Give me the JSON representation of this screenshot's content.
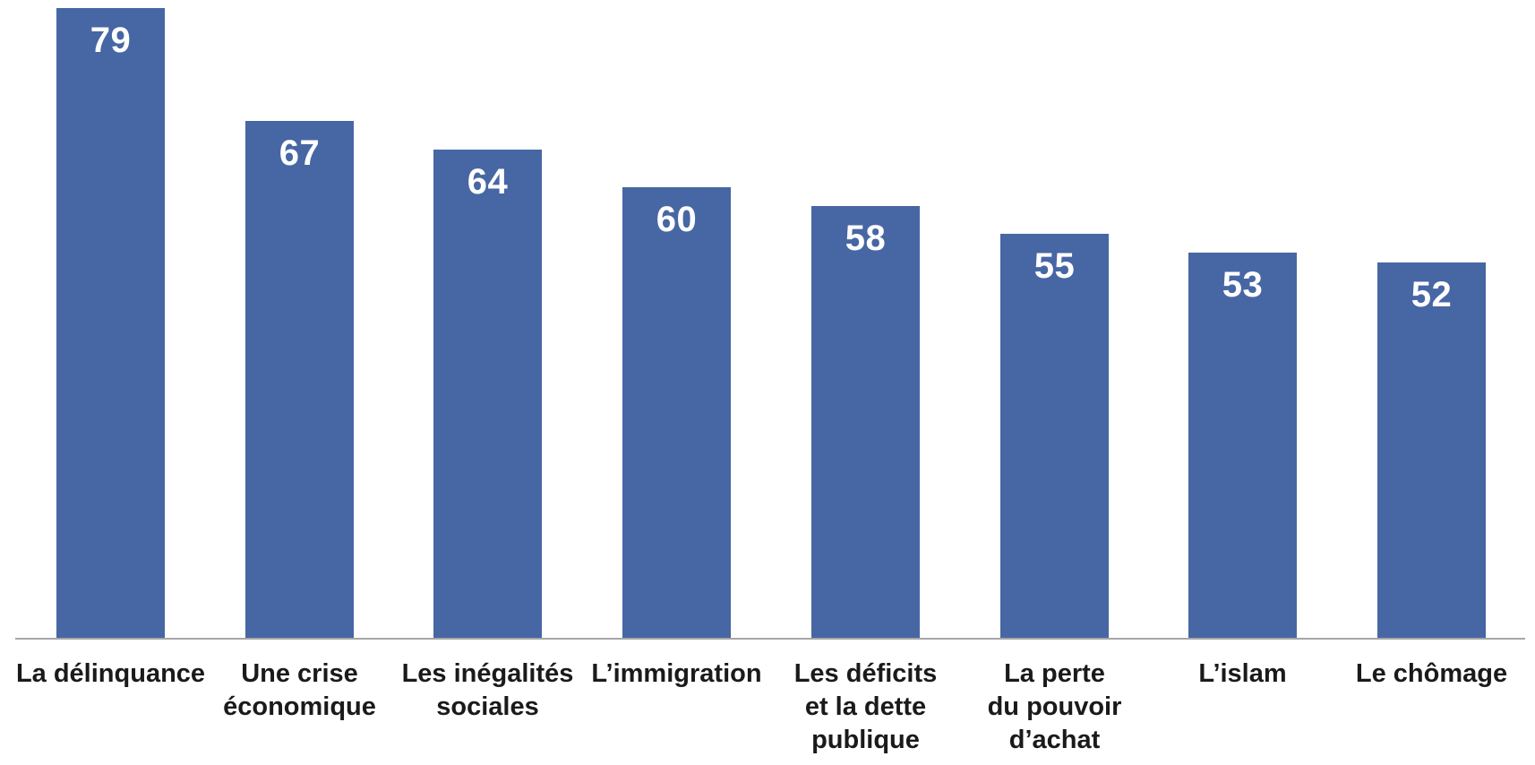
{
  "chart_data": {
    "type": "bar",
    "title": "",
    "xlabel": "",
    "ylabel": "",
    "categories": [
      "La délinquance",
      "Une crise économique",
      "Les inégalités sociales",
      "L’immigration",
      "Les déficits et la dette publique",
      "La perte du pouvoir d’achat",
      "L’islam",
      "Le chômage"
    ],
    "labels_display": [
      "La délinquance",
      "Une crise\néconomique",
      "Les inégalités\nsociales",
      "L’immigration",
      "Les déficits\net la dette\npublique",
      "La perte\ndu pouvoir\nd’achat",
      "L’islam",
      "Le chômage"
    ],
    "values": [
      79,
      67,
      64,
      60,
      58,
      55,
      53,
      52
    ],
    "value_labels_shown": true,
    "ylim": [
      12,
      80
    ],
    "grid": false,
    "legend": false,
    "colors": {
      "bar": "#4766a4",
      "value_label": "#ffffff",
      "category_label": "#1a1a1a",
      "axis_line": "#a6a6a6",
      "background": "#ffffff"
    }
  }
}
